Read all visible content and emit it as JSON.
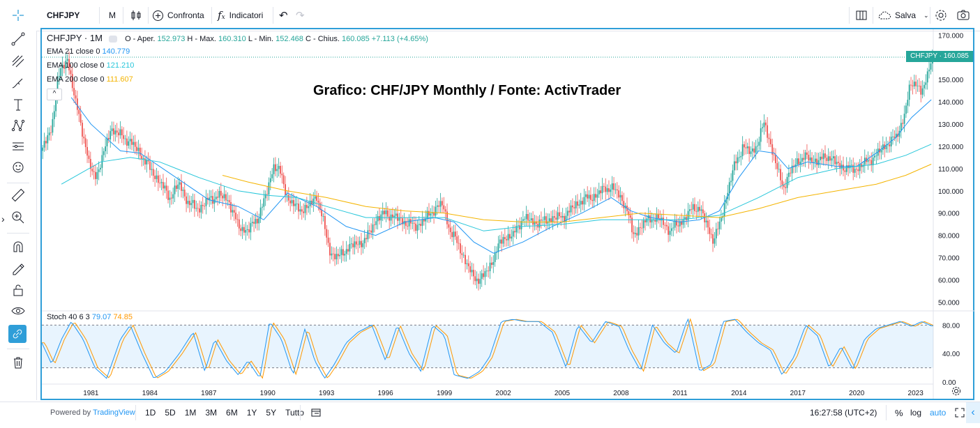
{
  "toolbar": {
    "symbol": "CHFJPY",
    "interval": "M",
    "compare_label": "Confronta",
    "indicators_label": "Indicatori",
    "save_label": "Salva"
  },
  "legend": {
    "title": "CHFJPY · 1M",
    "o_label": "O - Aper.",
    "o_value": "152.973",
    "h_label": "H - Max.",
    "h_value": "160.310",
    "l_label": "L - Min.",
    "l_value": "152.468",
    "c_label": "C - Chius.",
    "c_value": "160.085",
    "change": "+7.113 (+4.65%)",
    "ema21_label": "EMA 21 close 0",
    "ema21_value": "140.779",
    "ema100_label": "EMA 100 close 0",
    "ema100_value": "121.210",
    "ema200_label": "EMA 200 close 0",
    "ema200_value": "111.607",
    "stoch_label": "Stoch 40 6 3",
    "stoch_k": "79.07",
    "stoch_d": "74.85"
  },
  "overlay_title": "Grafico: CHF/JPY Monthly / Fonte: ActivTrader",
  "price_label": "CHFJPY · 160.085",
  "bottom": {
    "powered_by": "Powered by",
    "powered_brand": "TradingView",
    "ranges": [
      "1D",
      "5D",
      "1M",
      "3M",
      "6M",
      "1Y",
      "5Y",
      "Tutto"
    ],
    "time": "16:27:58 (UTC+2)",
    "percent": "%",
    "log": "log",
    "auto": "auto"
  },
  "colors": {
    "up": "#26a69a",
    "down": "#ef5350",
    "ema21": "#2196f3",
    "ema100": "#26c6da",
    "ema200": "#f4b400",
    "stoch_k": "#2196f3",
    "stoch_d": "#ff9800",
    "frame": "#2f9ed8"
  },
  "chart_data": {
    "type": "candlestick",
    "title": "CHFJPY · 1M",
    "x_ticks": [
      "1981",
      "1984",
      "1987",
      "1990",
      "1993",
      "1996",
      "1999",
      "2002",
      "2005",
      "2008",
      "2011",
      "2014",
      "2017",
      "2020",
      "2023"
    ],
    "x_range": [
      1978.5,
      2023.9
    ],
    "y_ticks": [
      "170.000",
      "160.000",
      "150.000",
      "140.000",
      "130.000",
      "120.000",
      "110.000",
      "100.000",
      "90.000",
      "80.000",
      "70.000",
      "60.000",
      "50.000"
    ],
    "ylim": [
      47,
      172
    ],
    "last_price": 160.085,
    "close_path": {
      "x": [
        1978.5,
        1979.0,
        1979.3,
        1979.8,
        1980.2,
        1980.5,
        1980.9,
        1981.2,
        1981.6,
        1982.0,
        1982.5,
        1983.0,
        1983.5,
        1984.0,
        1984.5,
        1985.0,
        1985.5,
        1986.0,
        1986.5,
        1987.0,
        1987.5,
        1988.0,
        1988.5,
        1989.0,
        1989.5,
        1990.0,
        1990.3,
        1990.7,
        1991.0,
        1991.5,
        1992.0,
        1992.5,
        1992.8,
        1993.2,
        1993.6,
        1994.0,
        1994.5,
        1995.0,
        1995.5,
        1996.0,
        1996.5,
        1997.0,
        1997.5,
        1998.0,
        1998.5,
        1998.9,
        1999.3,
        1999.7,
        2000.0,
        2000.4,
        2000.8,
        2001.2,
        2001.6,
        2002.0,
        2002.5,
        2003.0,
        2003.5,
        2004.0,
        2004.5,
        2005.0,
        2005.5,
        2006.0,
        2006.5,
        2007.0,
        2007.5,
        2007.9,
        2008.3,
        2008.6,
        2009.0,
        2009.5,
        2010.0,
        2010.5,
        2011.0,
        2011.3,
        2011.7,
        2012.0,
        2012.4,
        2012.7,
        2013.0,
        2013.4,
        2013.8,
        2014.2,
        2014.6,
        2015.0,
        2015.3,
        2015.7,
        2016.0,
        2016.3,
        2016.6,
        2017.0,
        2017.5,
        2018.0,
        2018.5,
        2019.0,
        2019.5,
        2020.0,
        2020.5,
        2021.0,
        2021.5,
        2022.0,
        2022.4,
        2022.7,
        2023.0,
        2023.3,
        2023.6,
        2023.8
      ],
      "y": [
        118,
        128,
        150,
        160,
        140,
        130,
        112,
        106,
        115,
        128,
        125,
        122,
        117,
        110,
        104,
        97,
        103,
        94,
        92,
        96,
        98,
        96,
        84,
        82,
        88,
        100,
        112,
        107,
        97,
        92,
        92,
        98,
        87,
        72,
        70,
        74,
        76,
        78,
        87,
        90,
        88,
        86,
        84,
        87,
        92,
        94,
        82,
        76,
        70,
        62,
        60,
        64,
        72,
        79,
        80,
        88,
        86,
        86,
        88,
        88,
        92,
        96,
        97,
        100,
        102,
        98,
        92,
        80,
        84,
        88,
        87,
        82,
        86,
        88,
        93,
        92,
        84,
        78,
        84,
        99,
        112,
        120,
        117,
        122,
        131,
        118,
        108,
        102,
        108,
        114,
        115,
        113,
        116,
        112,
        110,
        110,
        113,
        116,
        121,
        124,
        133,
        146,
        150,
        143,
        152,
        160
      ]
    },
    "ema": [
      {
        "name": "EMA 21 close 0",
        "last": 140.779,
        "x": [
          1980.0,
          1981.0,
          1982.5,
          1983.5,
          1985.0,
          1987.0,
          1988.5,
          1989.8,
          1991.0,
          1992.5,
          1994.0,
          1995.5,
          1997.0,
          1998.5,
          1999.5,
          2000.5,
          2001.5,
          2003.0,
          2004.5,
          2006.0,
          2007.5,
          2008.5,
          2009.5,
          2011.0,
          2012.0,
          2013.0,
          2014.0,
          2015.0,
          2015.8,
          2016.5,
          2017.5,
          2019.0,
          2020.0,
          2021.0,
          2022.0,
          2022.8,
          2023.8
        ],
        "y": [
          142,
          130,
          118,
          117,
          108,
          96,
          93,
          87,
          99,
          93,
          84,
          80,
          86,
          88,
          86,
          77,
          72,
          77,
          84,
          90,
          97,
          91,
          88,
          86,
          87,
          91,
          106,
          118,
          117,
          110,
          113,
          111,
          111,
          117,
          124,
          133,
          141
        ]
      },
      {
        "name": "EMA 100 close 0",
        "last": 121.21,
        "x": [
          1979.5,
          1981.5,
          1983.0,
          1984.5,
          1986.5,
          1988.5,
          1990.0,
          1991.5,
          1993.0,
          1995.0,
          1997.0,
          1999.0,
          2001.0,
          2003.0,
          2005.0,
          2007.0,
          2009.0,
          2011.0,
          2013.0,
          2015.0,
          2017.0,
          2019.0,
          2021.0,
          2022.5,
          2023.8
        ],
        "y": [
          103,
          113,
          115,
          113,
          106,
          100,
          98,
          97,
          93,
          88,
          88,
          88,
          82,
          84,
          85,
          87,
          87,
          87,
          89,
          97,
          106,
          110,
          112,
          116,
          121
        ]
      },
      {
        "name": "EMA 200 close 0",
        "last": 111.607,
        "x": [
          1987.7,
          1989.0,
          1991.0,
          1993.0,
          1995.0,
          1997.0,
          1999.0,
          2001.0,
          2003.0,
          2005.0,
          2007.0,
          2009.0,
          2011.0,
          2013.0,
          2015.0,
          2017.0,
          2019.0,
          2021.0,
          2022.5,
          2023.8
        ],
        "y": [
          107,
          104,
          100,
          97,
          93,
          91,
          90,
          87,
          86,
          86,
          88,
          90,
          89,
          88,
          92,
          97,
          100,
          103,
          107,
          112
        ]
      }
    ],
    "stochastic": {
      "name": "Stoch 40 6 3",
      "k_last": 79.07,
      "d_last": 74.85,
      "ylim": [
        0,
        95
      ],
      "y_ticks": [
        "80.00",
        "40.00",
        "0.00"
      ],
      "band": [
        20,
        80
      ],
      "x": [
        1978.5,
        1979.0,
        1979.5,
        1980.0,
        1980.6,
        1981.2,
        1981.8,
        1982.5,
        1983.0,
        1983.6,
        1984.2,
        1984.8,
        1985.5,
        1986.2,
        1986.8,
        1987.3,
        1987.9,
        1988.5,
        1989.0,
        1989.6,
        1990.1,
        1990.7,
        1991.3,
        1991.9,
        1992.4,
        1992.9,
        1993.4,
        1994.0,
        1994.6,
        1995.3,
        1996.0,
        1996.6,
        1997.2,
        1997.8,
        1998.4,
        1999.0,
        1999.5,
        2000.2,
        2000.8,
        2001.3,
        2001.9,
        2002.5,
        2003.1,
        2003.8,
        2004.5,
        2005.2,
        2005.8,
        2006.5,
        2007.2,
        2007.9,
        2008.4,
        2009.0,
        2009.6,
        2010.2,
        2010.8,
        2011.4,
        2012.0,
        2012.6,
        2013.2,
        2013.8,
        2014.4,
        2015.0,
        2015.6,
        2016.2,
        2016.8,
        2017.4,
        2018.0,
        2018.6,
        2019.2,
        2019.8,
        2020.4,
        2021.0,
        2021.6,
        2022.2,
        2022.8,
        2023.3,
        2023.8
      ],
      "y": [
        55,
        25,
        60,
        85,
        60,
        20,
        5,
        60,
        80,
        40,
        5,
        15,
        40,
        70,
        15,
        60,
        30,
        10,
        30,
        5,
        85,
        60,
        10,
        75,
        30,
        5,
        25,
        55,
        70,
        80,
        30,
        80,
        40,
        15,
        80,
        65,
        10,
        5,
        15,
        35,
        85,
        88,
        85,
        85,
        70,
        20,
        80,
        55,
        85,
        78,
        45,
        15,
        80,
        55,
        40,
        90,
        15,
        25,
        85,
        88,
        70,
        55,
        45,
        10,
        35,
        80,
        65,
        20,
        50,
        18,
        60,
        75,
        80,
        85,
        78,
        85,
        79
      ]
    }
  }
}
